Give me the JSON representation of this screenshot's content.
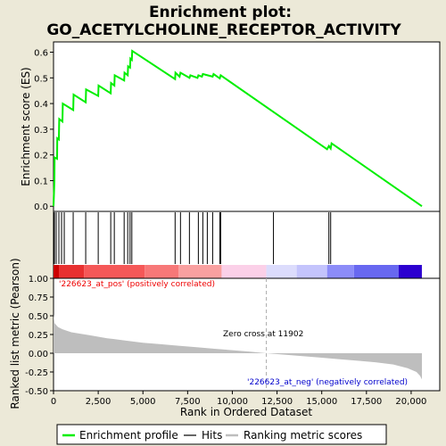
{
  "chart_data": {
    "type": "line",
    "title": "Enrichment plot:",
    "subtitle": "GO_ACETYLCHOLINE_RECEPTOR_ACTIVITY",
    "xlabel": "Rank in Ordered Dataset",
    "xlim": [
      0,
      21600
    ],
    "x_ticks": [
      0,
      2500,
      5000,
      7500,
      10000,
      12500,
      15000,
      17500,
      20000
    ],
    "x_tick_labels": [
      "0",
      "2,500",
      "5,000",
      "7,500",
      "10,000",
      "12,500",
      "15,000",
      "17,500",
      "20,000"
    ],
    "es_panel": {
      "ylabel": "Enrichment score (ES)",
      "ylim": [
        -0.02,
        0.64
      ],
      "y_ticks": [
        0.0,
        0.1,
        0.2,
        0.3,
        0.4,
        0.5,
        0.6
      ],
      "y_tick_labels": [
        "0.0",
        "0.1",
        "0.2",
        "0.3",
        "0.4",
        "0.5",
        "0.6"
      ],
      "series_name": "Enrichment profile",
      "color": "#00ee00",
      "points": [
        [
          0,
          0.0
        ],
        [
          50,
          0.1
        ],
        [
          60,
          0.19
        ],
        [
          200,
          0.185
        ],
        [
          210,
          0.265
        ],
        [
          300,
          0.26
        ],
        [
          320,
          0.34
        ],
        [
          500,
          0.33
        ],
        [
          520,
          0.4
        ],
        [
          1100,
          0.375
        ],
        [
          1120,
          0.435
        ],
        [
          1800,
          0.405
        ],
        [
          1820,
          0.455
        ],
        [
          2500,
          0.43
        ],
        [
          2520,
          0.47
        ],
        [
          3200,
          0.44
        ],
        [
          3220,
          0.48
        ],
        [
          3400,
          0.47
        ],
        [
          3420,
          0.51
        ],
        [
          3950,
          0.49
        ],
        [
          3970,
          0.52
        ],
        [
          4150,
          0.51
        ],
        [
          4170,
          0.545
        ],
        [
          4280,
          0.54
        ],
        [
          4300,
          0.575
        ],
        [
          4380,
          0.57
        ],
        [
          4400,
          0.605
        ],
        [
          6800,
          0.495
        ],
        [
          6820,
          0.52
        ],
        [
          7050,
          0.505
        ],
        [
          7100,
          0.52
        ],
        [
          7600,
          0.5
        ],
        [
          7650,
          0.51
        ],
        [
          8050,
          0.5
        ],
        [
          8100,
          0.51
        ],
        [
          8300,
          0.505
        ],
        [
          8350,
          0.515
        ],
        [
          8900,
          0.505
        ],
        [
          8950,
          0.515
        ],
        [
          9300,
          0.498
        ],
        [
          9350,
          0.51
        ],
        [
          15300,
          0.222
        ],
        [
          15400,
          0.235
        ],
        [
          15500,
          0.225
        ],
        [
          15550,
          0.245
        ],
        [
          20600,
          0.0
        ]
      ]
    },
    "hits": [
      50,
      150,
      300,
      450,
      600,
      1100,
      1800,
      2500,
      3200,
      3400,
      3950,
      4150,
      4280,
      4380,
      6800,
      7100,
      7600,
      8100,
      8350,
      8600,
      8900,
      9300,
      9350,
      12300,
      15400,
      15500
    ],
    "color_bar": {
      "segments": [
        {
          "from": 0,
          "to": 300,
          "color": "#cc0000"
        },
        {
          "from": 300,
          "to": 1700,
          "color": "#e83030"
        },
        {
          "from": 1700,
          "to": 5100,
          "color": "#f55858"
        },
        {
          "from": 5100,
          "to": 7000,
          "color": "#f77878"
        },
        {
          "from": 7000,
          "to": 9400,
          "color": "#f9a0a0"
        },
        {
          "from": 9400,
          "to": 11900,
          "color": "#fbd0e8"
        },
        {
          "from": 11900,
          "to": 13600,
          "color": "#dcdcfc"
        },
        {
          "from": 13600,
          "to": 15300,
          "color": "#c4c4fc"
        },
        {
          "from": 15300,
          "to": 16800,
          "color": "#8c8cf8"
        },
        {
          "from": 16800,
          "to": 19300,
          "color": "#6868f0"
        },
        {
          "from": 19300,
          "to": 20600,
          "color": "#2c00d0"
        }
      ]
    },
    "metric_panel": {
      "ylabel": "Ranked list metric (Pearson)",
      "ylim": [
        -0.5,
        1.0
      ],
      "y_ticks": [
        -0.5,
        -0.25,
        0.0,
        0.25,
        0.5,
        0.75,
        1.0
      ],
      "y_tick_labels": [
        "-0.50",
        "-0.25",
        "0.00",
        "0.25",
        "0.50",
        "0.75",
        "1.00"
      ],
      "color": "#bebebe",
      "points": [
        [
          0,
          0.52
        ],
        [
          60,
          0.4
        ],
        [
          250,
          0.35
        ],
        [
          500,
          0.32
        ],
        [
          1000,
          0.28
        ],
        [
          2000,
          0.24
        ],
        [
          3000,
          0.2
        ],
        [
          4000,
          0.17
        ],
        [
          5000,
          0.14
        ],
        [
          6000,
          0.12
        ],
        [
          7000,
          0.1
        ],
        [
          8000,
          0.08
        ],
        [
          9000,
          0.06
        ],
        [
          10000,
          0.04
        ],
        [
          11000,
          0.02
        ],
        [
          11902,
          0.0
        ],
        [
          13000,
          -0.02
        ],
        [
          14000,
          -0.04
        ],
        [
          15000,
          -0.06
        ],
        [
          16000,
          -0.08
        ],
        [
          17000,
          -0.1
        ],
        [
          18000,
          -0.12
        ],
        [
          19000,
          -0.15
        ],
        [
          19800,
          -0.2
        ],
        [
          20300,
          -0.25
        ],
        [
          20500,
          -0.3
        ],
        [
          20600,
          -0.35
        ]
      ],
      "zero_cross": 11902,
      "pos_label": "'226623_at_pos' (positively correlated)",
      "neg_label": "'226623_at_neg' (negatively correlated)",
      "zero_label": "Zero cross at 11902",
      "pos_color": "#ee0000",
      "neg_color": "#0000cc"
    },
    "legend": {
      "placement": "bottom",
      "items": [
        {
          "label": "Enrichment profile",
          "color": "#00ee00"
        },
        {
          "label": "Hits",
          "color": "#000000"
        },
        {
          "label": "Ranking metric scores",
          "color": "#bebebe"
        }
      ]
    }
  }
}
